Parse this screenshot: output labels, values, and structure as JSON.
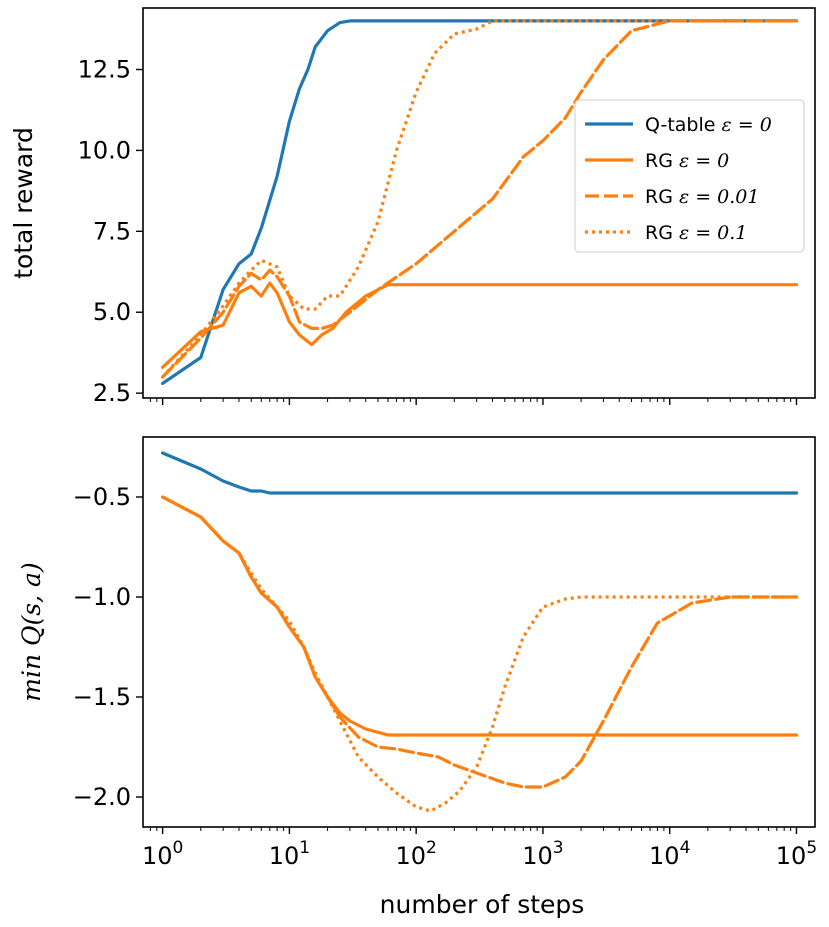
{
  "chart_data": [
    {
      "type": "line",
      "panel": "top",
      "xscale": "log",
      "xlim": [
        0.7,
        140000
      ],
      "ylim": [
        2.35,
        14.4
      ],
      "xlabel": "",
      "ylabel": "total reward",
      "yticks": [
        2.5,
        5.0,
        7.5,
        10.0,
        12.5
      ],
      "ytick_labels": [
        "2.5",
        "5.0",
        "7.5",
        "10.0",
        "12.5"
      ],
      "legend": {
        "placement": "right",
        "entries": [
          {
            "name": "Q-table",
            "math": "ε = 0",
            "color": "#1f77b4",
            "dash": "solid"
          },
          {
            "name": "RG",
            "math": "ε = 0",
            "color": "#ff7f0e",
            "dash": "solid"
          },
          {
            "name": "RG",
            "math": "ε = 0.01",
            "color": "#ff7f0e",
            "dash": "dashed"
          },
          {
            "name": "RG",
            "math": "ε = 0.1",
            "color": "#ff7f0e",
            "dash": "dotted"
          }
        ]
      },
      "series": [
        {
          "name": "Q-table ε=0",
          "color": "#1f77b4",
          "dash": "solid",
          "x": [
            1,
            2,
            3,
            4,
            5,
            6,
            8,
            10,
            12,
            14,
            16,
            20,
            25,
            30,
            100000
          ],
          "y": [
            2.8,
            3.6,
            5.7,
            6.5,
            6.8,
            7.6,
            9.2,
            10.9,
            11.9,
            12.5,
            13.2,
            13.7,
            13.95,
            14.0,
            14.0
          ]
        },
        {
          "name": "RG ε=0",
          "color": "#ff7f0e",
          "dash": "solid",
          "x": [
            1,
            2,
            3,
            4,
            5,
            6,
            7,
            8,
            10,
            12,
            15,
            18,
            22,
            28,
            40,
            60,
            100000
          ],
          "y": [
            3.3,
            4.4,
            4.6,
            5.6,
            5.8,
            5.5,
            5.9,
            5.6,
            4.7,
            4.3,
            4.0,
            4.3,
            4.5,
            5.0,
            5.5,
            5.85,
            5.85
          ]
        },
        {
          "name": "RG ε=0.01",
          "color": "#ff7f0e",
          "dash": "dashed",
          "x": [
            1,
            2,
            3,
            4,
            5,
            6,
            7,
            8,
            10,
            12,
            15,
            18,
            22,
            30,
            50,
            100,
            200,
            400,
            700,
            1000,
            1500,
            2000,
            3000,
            5000,
            10000,
            20000,
            100000
          ],
          "y": [
            3.0,
            4.2,
            5.0,
            5.8,
            6.2,
            6.0,
            6.3,
            6.1,
            5.5,
            4.7,
            4.5,
            4.5,
            4.6,
            5.0,
            5.7,
            6.5,
            7.5,
            8.5,
            9.8,
            10.3,
            11.0,
            11.8,
            12.8,
            13.7,
            14.0,
            14.0,
            14.0
          ]
        },
        {
          "name": "RG ε=0.1",
          "color": "#ff7f0e",
          "dash": "dotted",
          "x": [
            1,
            2,
            3,
            4,
            5,
            6,
            8,
            10,
            13,
            16,
            20,
            25,
            35,
            50,
            70,
            100,
            140,
            200,
            300,
            400,
            100000
          ],
          "y": [
            3.0,
            4.3,
            5.2,
            5.9,
            6.3,
            6.6,
            6.4,
            5.5,
            5.1,
            5.1,
            5.5,
            5.5,
            6.4,
            7.8,
            10.0,
            11.8,
            13.0,
            13.6,
            13.75,
            14.0,
            14.0
          ]
        }
      ]
    },
    {
      "type": "line",
      "panel": "bottom",
      "xscale": "log",
      "xlim": [
        0.7,
        140000
      ],
      "ylim": [
        -2.15,
        -0.2
      ],
      "xlabel": "number of steps",
      "ylabel": "min Q(s, a)",
      "yticks": [
        -2.0,
        -1.5,
        -1.0,
        -0.5
      ],
      "ytick_labels": [
        "−2.0",
        "−1.5",
        "−1.0",
        "−0.5"
      ],
      "xticks": [
        1,
        10,
        100,
        1000,
        10000,
        100000
      ],
      "xtick_labels": [
        {
          "base": "10",
          "exp": "0"
        },
        {
          "base": "10",
          "exp": "1"
        },
        {
          "base": "10",
          "exp": "2"
        },
        {
          "base": "10",
          "exp": "3"
        },
        {
          "base": "10",
          "exp": "4"
        },
        {
          "base": "10",
          "exp": "5"
        }
      ],
      "series": [
        {
          "name": "Q-table ε=0",
          "color": "#1f77b4",
          "dash": "solid",
          "x": [
            1,
            2,
            3,
            4,
            5,
            6,
            7,
            100000
          ],
          "y": [
            -0.28,
            -0.36,
            -0.42,
            -0.45,
            -0.47,
            -0.47,
            -0.48,
            -0.48
          ]
        },
        {
          "name": "RG ε=0",
          "color": "#ff7f0e",
          "dash": "solid",
          "x": [
            1,
            2,
            3,
            4,
            5,
            6,
            8,
            10,
            13,
            16,
            20,
            25,
            30,
            40,
            60,
            100,
            100000
          ],
          "y": [
            -0.5,
            -0.6,
            -0.72,
            -0.78,
            -0.9,
            -0.98,
            -1.05,
            -1.15,
            -1.25,
            -1.4,
            -1.5,
            -1.58,
            -1.62,
            -1.66,
            -1.69,
            -1.69,
            -1.69
          ]
        },
        {
          "name": "RG ε=0.01",
          "color": "#ff7f0e",
          "dash": "dashed",
          "x": [
            1,
            2,
            3,
            4,
            5,
            6,
            8,
            10,
            13,
            16,
            20,
            25,
            35,
            50,
            70,
            100,
            150,
            200,
            300,
            500,
            700,
            1000,
            1500,
            2000,
            3000,
            5000,
            8000,
            15000,
            30000,
            100000
          ],
          "y": [
            -0.5,
            -0.6,
            -0.72,
            -0.78,
            -0.9,
            -0.98,
            -1.05,
            -1.15,
            -1.25,
            -1.4,
            -1.5,
            -1.6,
            -1.7,
            -1.75,
            -1.76,
            -1.78,
            -1.8,
            -1.84,
            -1.88,
            -1.93,
            -1.95,
            -1.95,
            -1.9,
            -1.82,
            -1.62,
            -1.35,
            -1.13,
            -1.03,
            -1.0,
            -1.0
          ]
        },
        {
          "name": "RG ε=0.1",
          "color": "#ff7f0e",
          "dash": "dotted",
          "x": [
            1,
            2,
            3,
            4,
            5,
            6,
            8,
            10,
            13,
            16,
            20,
            25,
            35,
            50,
            70,
            100,
            130,
            170,
            220,
            300,
            400,
            500,
            700,
            1000,
            1500,
            2000,
            3000,
            100000
          ],
          "y": [
            -0.5,
            -0.6,
            -0.72,
            -0.78,
            -0.88,
            -0.96,
            -1.05,
            -1.12,
            -1.25,
            -1.38,
            -1.5,
            -1.62,
            -1.8,
            -1.9,
            -1.98,
            -2.05,
            -2.07,
            -2.03,
            -1.97,
            -1.85,
            -1.65,
            -1.45,
            -1.2,
            -1.05,
            -1.01,
            -1.0,
            -1.0,
            -1.0
          ]
        }
      ]
    }
  ]
}
